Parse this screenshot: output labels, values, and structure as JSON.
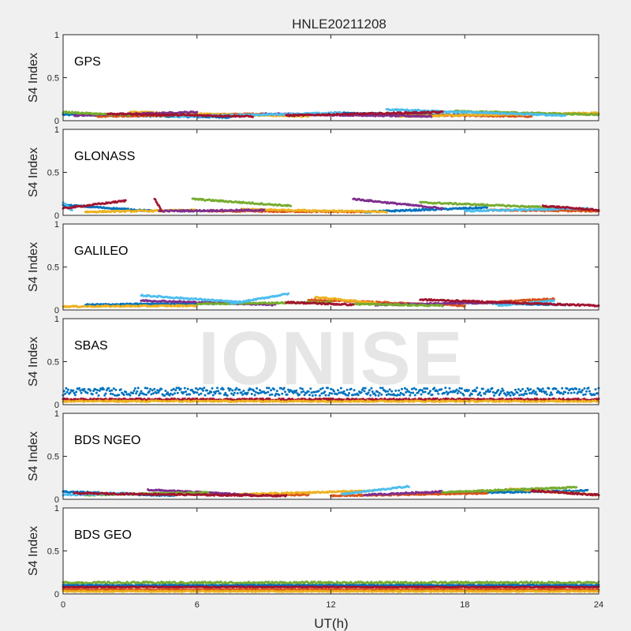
{
  "watermark": "IONISE",
  "colors": {
    "figure_bg": "#f0f0f0",
    "axes_bg": "#ffffff",
    "axes_edge": "#262626",
    "palette": [
      "#0072BD",
      "#D95319",
      "#EDB120",
      "#7E2F8E",
      "#77AC30",
      "#4DBEEE",
      "#A2142F"
    ]
  },
  "chart_data": {
    "type": "scatter",
    "title": "HNLE20211208",
    "xlabel": "UT(h)",
    "xlim": [
      0,
      24
    ],
    "xticks": [
      "0",
      "6",
      "12",
      "18",
      "24"
    ],
    "xtick_values": [
      0,
      6,
      12,
      18,
      24
    ],
    "grid": false,
    "panels": [
      {
        "label": "GPS",
        "ylabel": "S4 Index",
        "ylim": [
          0,
          1
        ],
        "yticks": [
          "0",
          "0.5",
          "1"
        ],
        "series": [
          {
            "color": "#0072BD",
            "segments": [
              [
                0.0,
                7.5,
                0.07,
                0.04
              ],
              [
                12.0,
                19.5,
                0.09,
                0.06
              ]
            ]
          },
          {
            "color": "#D95319",
            "segments": [
              [
                1.5,
                9.0,
                0.05,
                0.08
              ],
              [
                13.0,
                21.0,
                0.07,
                0.05
              ]
            ]
          },
          {
            "color": "#EDB120",
            "segments": [
              [
                3.0,
                11.0,
                0.1,
                0.05
              ],
              [
                15.0,
                24.0,
                0.05,
                0.09
              ]
            ]
          },
          {
            "color": "#7E2F8E",
            "segments": [
              [
                0.5,
                6.0,
                0.06,
                0.1
              ],
              [
                9.0,
                16.5,
                0.08,
                0.05
              ]
            ]
          },
          {
            "color": "#77AC30",
            "segments": [
              [
                0.0,
                3.0,
                0.1,
                0.06
              ],
              [
                17.5,
                24.0,
                0.11,
                0.07
              ]
            ]
          },
          {
            "color": "#4DBEEE",
            "segments": [
              [
                5.0,
                12.5,
                0.05,
                0.09
              ],
              [
                14.5,
                22.5,
                0.13,
                0.06
              ]
            ]
          },
          {
            "color": "#A2142F",
            "segments": [
              [
                2.0,
                8.5,
                0.08,
                0.05
              ],
              [
                10.0,
                17.0,
                0.06,
                0.1
              ]
            ]
          }
        ]
      },
      {
        "label": "GLONASS",
        "ylabel": "S4 Index",
        "ylim": [
          0,
          1
        ],
        "yticks": [
          "0",
          "0.5",
          "1"
        ],
        "series": [
          {
            "color": "#0072BD",
            "segments": [
              [
                0.0,
                4.0,
                0.12,
                0.05
              ],
              [
                13.5,
                19.0,
                0.04,
                0.09
              ]
            ]
          },
          {
            "color": "#D95319",
            "segments": [
              [
                6.5,
                13.5,
                0.05,
                0.04
              ],
              [
                19.0,
                24.0,
                0.06,
                0.05
              ]
            ]
          },
          {
            "color": "#EDB120",
            "segments": [
              [
                1.0,
                6.0,
                0.04,
                0.06
              ],
              [
                8.0,
                14.5,
                0.07,
                0.04
              ]
            ]
          },
          {
            "color": "#7E2F8E",
            "segments": [
              [
                13.0,
                17.0,
                0.19,
                0.08
              ],
              [
                4.3,
                9.0,
                0.05,
                0.06
              ]
            ]
          },
          {
            "color": "#77AC30",
            "segments": [
              [
                5.8,
                10.2,
                0.19,
                0.11
              ],
              [
                16.0,
                22.0,
                0.15,
                0.09
              ]
            ]
          },
          {
            "color": "#4DBEEE",
            "segments": [
              [
                0.0,
                0.4,
                0.15,
                0.06
              ],
              [
                18.0,
                23.5,
                0.05,
                0.08
              ]
            ]
          },
          {
            "color": "#A2142F",
            "segments": [
              [
                0.0,
                2.8,
                0.08,
                0.17
              ],
              [
                21.5,
                24.0,
                0.11,
                0.06
              ],
              [
                4.1,
                4.4,
                0.19,
                0.06
              ]
            ]
          }
        ]
      },
      {
        "label": "GALILEO",
        "ylabel": "S4 Index",
        "ylim": [
          0,
          1
        ],
        "yticks": [
          "0",
          "0.5",
          "1"
        ],
        "series": [
          {
            "color": "#0072BD",
            "segments": [
              [
                1.0,
                7.5,
                0.06,
                0.08
              ],
              [
                17.5,
                22.5,
                0.09,
                0.06
              ]
            ]
          },
          {
            "color": "#D95319",
            "segments": [
              [
                11.0,
                18.0,
                0.12,
                0.05
              ],
              [
                18.5,
                22.0,
                0.08,
                0.13
              ]
            ]
          },
          {
            "color": "#EDB120",
            "segments": [
              [
                0.0,
                6.0,
                0.04,
                0.05
              ],
              [
                11.3,
                14.0,
                0.15,
                0.08
              ]
            ]
          },
          {
            "color": "#7E2F8E",
            "segments": [
              [
                3.5,
                9.5,
                0.11,
                0.06
              ],
              [
                14.0,
                20.0,
                0.06,
                0.09
              ]
            ]
          },
          {
            "color": "#77AC30",
            "segments": [
              [
                6.0,
                12.0,
                0.07,
                0.09
              ],
              [
                13.0,
                17.0,
                0.07,
                0.05
              ]
            ]
          },
          {
            "color": "#4DBEEE",
            "segments": [
              [
                3.5,
                8.0,
                0.17,
                0.09
              ],
              [
                7.5,
                10.1,
                0.07,
                0.19
              ],
              [
                19.5,
                22.0,
                0.05,
                0.11
              ]
            ]
          },
          {
            "color": "#A2142F",
            "segments": [
              [
                16.0,
                24.0,
                0.12,
                0.05
              ],
              [
                10.0,
                13.0,
                0.09,
                0.06
              ]
            ]
          }
        ]
      },
      {
        "label": "SBAS",
        "ylabel": "S4 Index",
        "ylim": [
          0,
          1
        ],
        "yticks": [
          "0",
          "0.5",
          "1"
        ],
        "series": [
          {
            "color": "#0072BD",
            "segments": [
              [
                0.0,
                24.0,
                0.15,
                0.15
              ]
            ],
            "noise": 0.045
          },
          {
            "color": "#A2142F",
            "segments": [
              [
                0.0,
                24.0,
                0.06,
                0.06
              ]
            ],
            "noise": 0.01
          },
          {
            "color": "#EDB120",
            "segments": [
              [
                0.0,
                24.0,
                0.04,
                0.04
              ]
            ],
            "noise": 0.008
          }
        ]
      },
      {
        "label": "BDS NGEO",
        "ylabel": "S4 Index",
        "ylim": [
          0,
          1
        ],
        "yticks": [
          "0",
          "0.5",
          "1"
        ],
        "series": [
          {
            "color": "#0072BD",
            "segments": [
              [
                0.0,
                5.0,
                0.09,
                0.04
              ],
              [
                15.0,
                23.5,
                0.06,
                0.1
              ]
            ]
          },
          {
            "color": "#D95319",
            "segments": [
              [
                4.0,
                11.0,
                0.06,
                0.05
              ],
              [
                12.0,
                19.0,
                0.04,
                0.07
              ]
            ]
          },
          {
            "color": "#EDB120",
            "segments": [
              [
                7.0,
                14.0,
                0.05,
                0.1
              ],
              [
                20.0,
                24.0,
                0.12,
                0.05
              ]
            ]
          },
          {
            "color": "#7E2F8E",
            "segments": [
              [
                3.8,
                8.5,
                0.11,
                0.05
              ],
              [
                13.5,
                17.0,
                0.05,
                0.09
              ]
            ]
          },
          {
            "color": "#77AC30",
            "segments": [
              [
                1.0,
                6.5,
                0.05,
                0.08
              ],
              [
                17.0,
                23.0,
                0.08,
                0.14
              ]
            ]
          },
          {
            "color": "#4DBEEE",
            "segments": [
              [
                12.5,
                15.5,
                0.06,
                0.15
              ],
              [
                0.0,
                3.0,
                0.05,
                0.07
              ]
            ]
          },
          {
            "color": "#A2142F",
            "segments": [
              [
                0.5,
                10.0,
                0.07,
                0.04
              ],
              [
                21.0,
                24.0,
                0.1,
                0.05
              ]
            ]
          }
        ]
      },
      {
        "label": "BDS GEO",
        "ylabel": "S4 Index",
        "ylim": [
          0,
          1
        ],
        "yticks": [
          "0",
          "0.5",
          "1"
        ],
        "series": [
          {
            "color": "#77AC30",
            "segments": [
              [
                0.0,
                24.0,
                0.13,
                0.13
              ]
            ],
            "noise": 0.012
          },
          {
            "color": "#0072BD",
            "segments": [
              [
                0.0,
                24.0,
                0.1,
                0.1
              ]
            ],
            "noise": 0.006
          },
          {
            "color": "#A2142F",
            "segments": [
              [
                0.0,
                24.0,
                0.08,
                0.08
              ]
            ],
            "noise": 0.006
          },
          {
            "color": "#D95319",
            "segments": [
              [
                0.0,
                24.0,
                0.05,
                0.05
              ]
            ],
            "noise": 0.006
          },
          {
            "color": "#EDB120",
            "segments": [
              [
                0.0,
                24.0,
                0.03,
                0.03
              ]
            ],
            "noise": 0.006
          }
        ]
      }
    ]
  }
}
